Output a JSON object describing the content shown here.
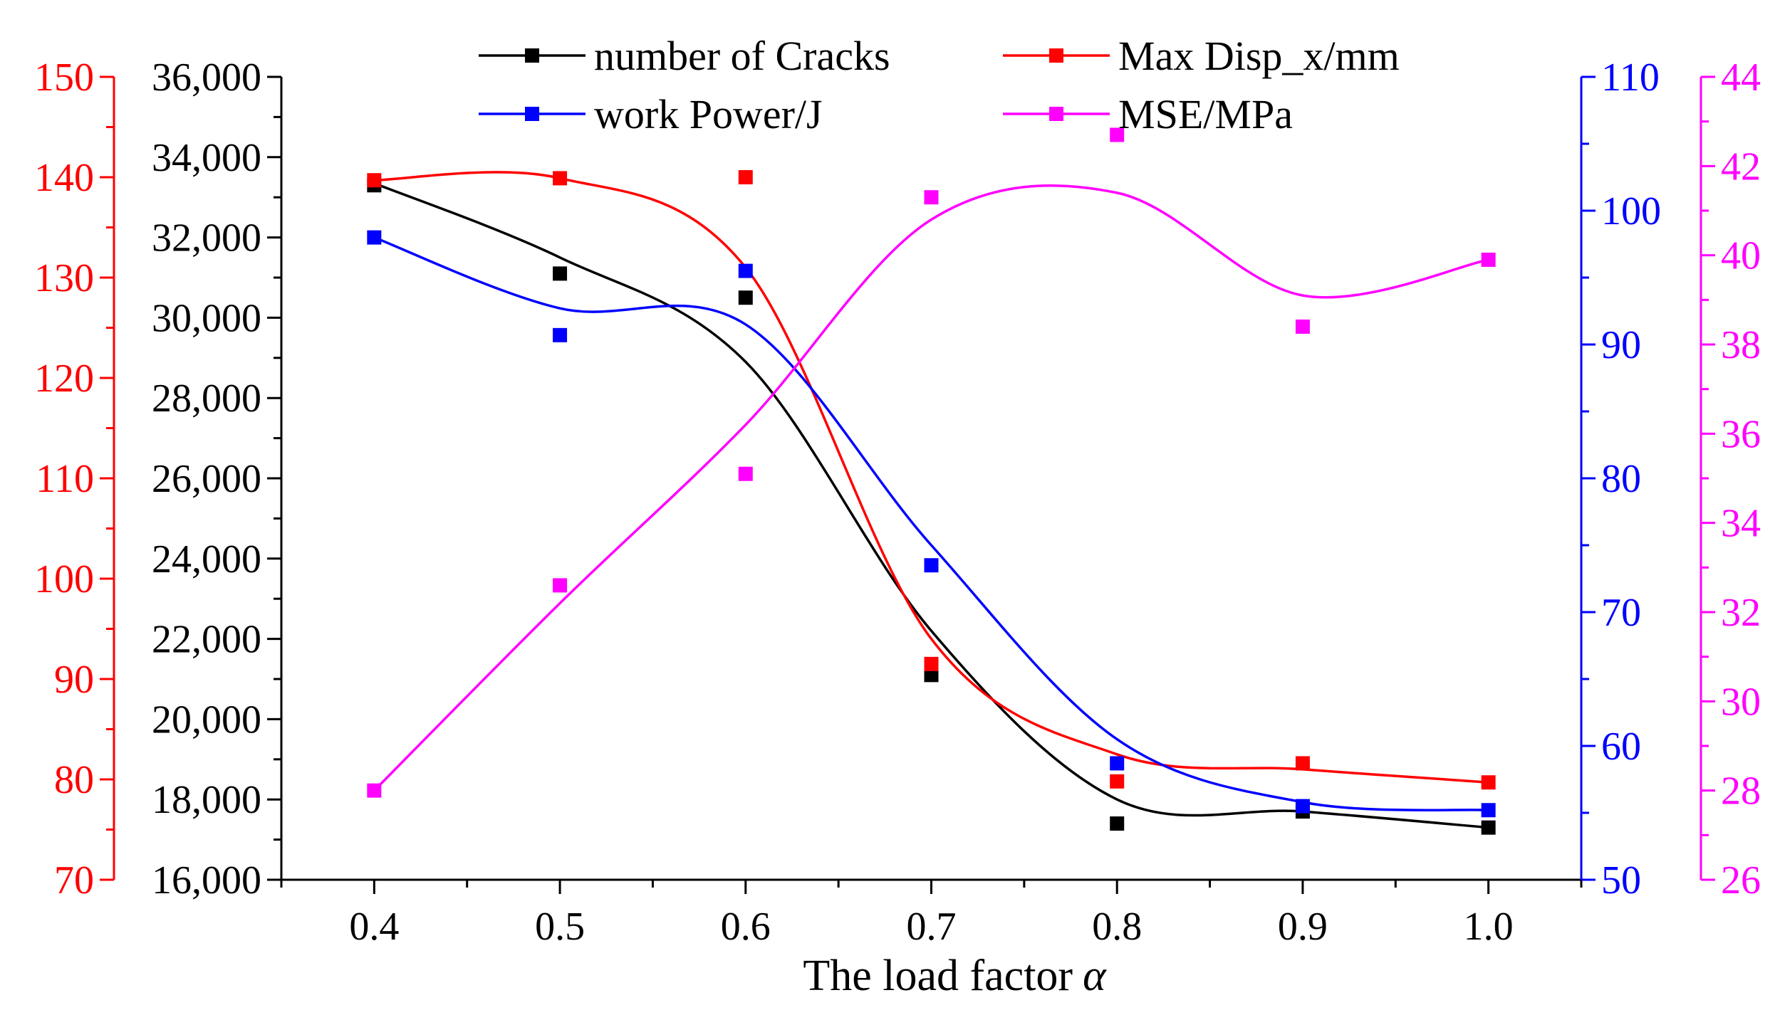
{
  "chart_data": {
    "type": "line",
    "x": [
      0.4,
      0.5,
      0.6,
      0.7,
      0.8,
      0.9,
      1.0
    ],
    "x_tick_labels": [
      "0.4",
      "0.5",
      "0.6",
      "0.7",
      "0.8",
      "0.9",
      "1.0"
    ],
    "xlabel": "The load factor",
    "xlabel_symbol": "α",
    "xlim": [
      0.35,
      1.05
    ],
    "axes": [
      {
        "id": "cracks",
        "side": "left-inner",
        "color": "#000000",
        "ylim": [
          16000,
          36000
        ],
        "major_step": 2000,
        "tick_labels": [
          "16,000",
          "18,000",
          "20,000",
          "22,000",
          "24,000",
          "26,000",
          "28,000",
          "30,000",
          "32,000",
          "34,000",
          "36,000"
        ]
      },
      {
        "id": "disp",
        "side": "left-outer",
        "color": "#ff0000",
        "ylim": [
          70,
          150
        ],
        "major_step": 10,
        "tick_labels": [
          "70",
          "80",
          "90",
          "100",
          "110",
          "120",
          "130",
          "140",
          "150"
        ]
      },
      {
        "id": "power",
        "side": "right-inner",
        "color": "#0000ff",
        "ylim": [
          50,
          110
        ],
        "major_step": 10,
        "tick_labels": [
          "50",
          "60",
          "70",
          "80",
          "90",
          "100",
          "110"
        ]
      },
      {
        "id": "mse",
        "side": "right-outer",
        "color": "#ff00ff",
        "ylim": [
          26,
          44
        ],
        "major_step": 2,
        "tick_labels": [
          "26",
          "28",
          "30",
          "32",
          "34",
          "36",
          "38",
          "40",
          "42",
          "44"
        ]
      }
    ],
    "series": [
      {
        "name": "number of Cracks",
        "axis": "cracks",
        "color": "#000000",
        "values": [
          33300,
          31100,
          30500,
          21100,
          17400,
          17700,
          17300
        ],
        "fit": [
          33350,
          31500,
          28900,
          22200,
          18000,
          17700,
          17300
        ]
      },
      {
        "name": "Max Disp_x/mm",
        "axis": "disp",
        "color": "#ff0000",
        "values": [
          139.7,
          139.9,
          140.0,
          91.5,
          79.8,
          81.6,
          79.7
        ],
        "fit": [
          139.7,
          139.9,
          131.0,
          94.0,
          82.5,
          81.0,
          79.7
        ]
      },
      {
        "name": "work Power/J",
        "axis": "power",
        "color": "#0000ff",
        "values": [
          98.0,
          90.7,
          95.5,
          73.5,
          58.7,
          55.5,
          55.2
        ],
        "fit": [
          98.0,
          92.7,
          91.5,
          75.0,
          60.5,
          55.8,
          55.2
        ]
      },
      {
        "name": "MSE/MPa",
        "axis": "mse",
        "color": "#ff00ff",
        "values": [
          28.0,
          32.6,
          35.1,
          41.3,
          42.7,
          38.4,
          39.9
        ],
        "fit": [
          28.0,
          32.2,
          36.2,
          40.8,
          41.4,
          39.1,
          39.9
        ]
      }
    ],
    "legend_position": "top"
  }
}
